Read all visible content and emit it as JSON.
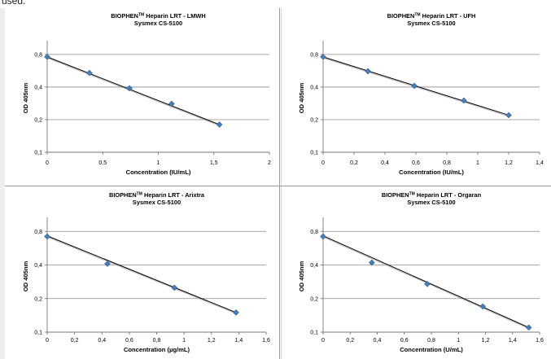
{
  "page": {
    "top_text": "used."
  },
  "colors": {
    "marker": "#4a7ebb",
    "marker_edge": "#2f5f96",
    "fit": "#000000",
    "fit_shadow": "#9a9a9a",
    "grid": "#8c8c8c"
  },
  "chart_data": [
    {
      "type": "scatter",
      "title_main": "BIOPHEN",
      "title_sup": "TM",
      "title_rest": " Heparin LRT - LMWH",
      "subtitle": "Sysmex CS-5100",
      "xlabel": "Concentration (IU/mL)",
      "ylabel": "OD 405nm",
      "xlim": [
        0,
        2
      ],
      "xticks": [
        0,
        0.5,
        1,
        1.5,
        2
      ],
      "xtick_labels": [
        "0",
        "0,5",
        "1",
        "1,5",
        "2"
      ],
      "ylim": [
        0.1,
        1.0
      ],
      "y_log": true,
      "yticks": [
        0.1,
        0.2,
        0.4,
        0.8
      ],
      "ytick_labels": [
        "0,1",
        "0,2",
        "0,4",
        "0,8"
      ],
      "grid": true,
      "points": {
        "x": [
          0,
          0.38,
          0.74,
          1.12,
          1.55
        ],
        "y": [
          0.76,
          0.54,
          0.39,
          0.28,
          0.18
        ]
      },
      "fit": {
        "x": [
          0,
          1.55
        ],
        "y": [
          0.76,
          0.18
        ]
      }
    },
    {
      "type": "scatter",
      "title_main": "BIOPHEN",
      "title_sup": "TM",
      "title_rest": " Heparin LRT - UFH",
      "subtitle": "Sysmex CS-5100",
      "xlabel": "Concentration (IU/mL)",
      "ylabel": "OD 405nm",
      "xlim": [
        0,
        1.4
      ],
      "xticks": [
        0,
        0.2,
        0.4,
        0.6,
        0.8,
        1.0,
        1.2,
        1.4
      ],
      "xtick_labels": [
        "0",
        "0,2",
        "0,4",
        "0,6",
        "0,8",
        "1",
        "1,2",
        "1,4"
      ],
      "ylim": [
        0.1,
        1.0
      ],
      "y_log": true,
      "yticks": [
        0.1,
        0.2,
        0.4,
        0.8
      ],
      "ytick_labels": [
        "0,1",
        "0,2",
        "0,4",
        "0,8"
      ],
      "grid": true,
      "points": {
        "x": [
          0,
          0.29,
          0.59,
          0.91,
          1.2
        ],
        "y": [
          0.76,
          0.56,
          0.41,
          0.3,
          0.22
        ]
      },
      "fit": {
        "x": [
          0,
          1.2
        ],
        "y": [
          0.76,
          0.22
        ]
      }
    },
    {
      "type": "scatter",
      "title_main": "BIOPHEN",
      "title_sup": "TM",
      "title_rest": " Heparin LRT - Arixtra",
      "subtitle": "Sysmex CS-5100",
      "xlabel": "Concentration (µg/mL)",
      "ylabel": "OD 405nm",
      "xlim": [
        0,
        1.6
      ],
      "xticks": [
        0,
        0.2,
        0.4,
        0.6,
        0.8,
        1.0,
        1.2,
        1.4,
        1.6
      ],
      "xtick_labels": [
        "0",
        "0,2",
        "0,4",
        "0,6",
        "0,8",
        "1",
        "1,2",
        "1,4",
        "1,6"
      ],
      "ylim": [
        0.1,
        1.0
      ],
      "y_log": true,
      "yticks": [
        0.1,
        0.2,
        0.4,
        0.8
      ],
      "ytick_labels": [
        "0,1",
        "0,2",
        "0,4",
        "0,8"
      ],
      "grid": true,
      "points": {
        "x": [
          0,
          0.44,
          0.93,
          1.38
        ],
        "y": [
          0.72,
          0.41,
          0.25,
          0.15
        ]
      },
      "fit": {
        "x": [
          0,
          1.38
        ],
        "y": [
          0.73,
          0.15
        ]
      }
    },
    {
      "type": "scatter",
      "title_main": "BIOPHEN",
      "title_sup": "TM",
      "title_rest": " Heparin LRT - Orgaran",
      "subtitle": "Sysmex CS-5100",
      "xlabel": "Concentration (U/mL)",
      "ylabel": "OD 405nm",
      "xlim": [
        0,
        1.6
      ],
      "xticks": [
        0,
        0.2,
        0.4,
        0.6,
        0.8,
        1.0,
        1.2,
        1.4,
        1.6
      ],
      "xtick_labels": [
        "0",
        "0,2",
        "0,4",
        "0,6",
        "0,8",
        "1",
        "1,2",
        "1,4",
        "1,6"
      ],
      "ylim": [
        0.1,
        1.0
      ],
      "y_log": true,
      "yticks": [
        0.1,
        0.2,
        0.4,
        0.8
      ],
      "ytick_labels": [
        "0,1",
        "0,2",
        "0,4",
        "0,8"
      ],
      "grid": true,
      "points": {
        "x": [
          0,
          0.36,
          0.77,
          1.18,
          1.52
        ],
        "y": [
          0.72,
          0.42,
          0.27,
          0.17,
          0.11
        ]
      },
      "fit": {
        "x": [
          0,
          1.52
        ],
        "y": [
          0.73,
          0.11
        ]
      }
    }
  ]
}
